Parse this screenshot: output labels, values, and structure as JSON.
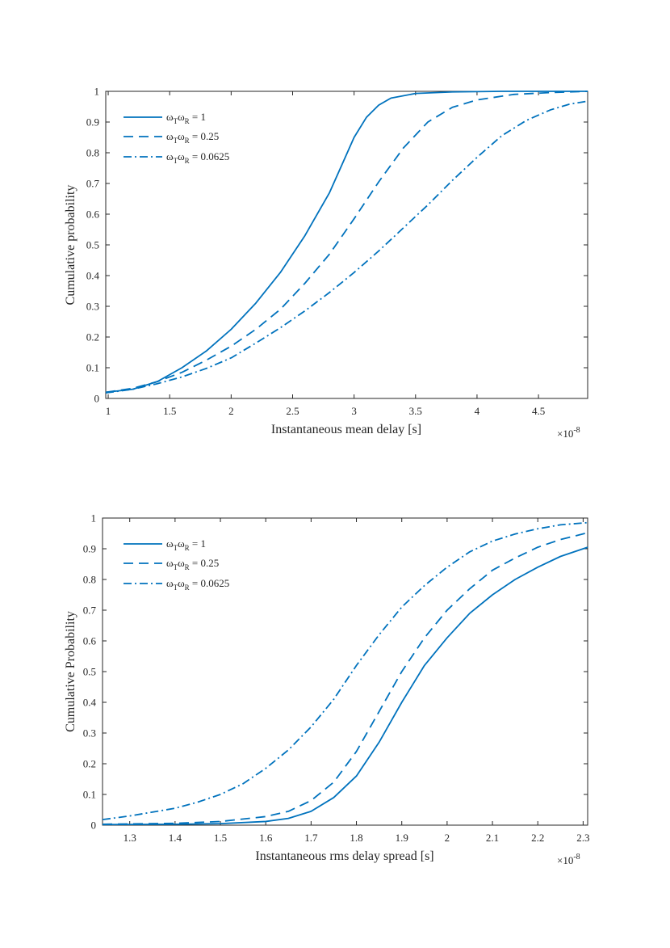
{
  "charts": [
    {
      "id": "top",
      "xlabel": "Instantaneous mean delay [s]",
      "ylabel": "Cumulative probability",
      "exponent_label": "×10",
      "exponent_power": "-8"
    },
    {
      "id": "bottom",
      "xlabel": "Instantaneous rms delay spread [s]",
      "ylabel": "Cumulative Probability",
      "exponent_label": "×10",
      "exponent_power": "-8"
    }
  ],
  "legend_entries": [
    {
      "main1": "ω",
      "sub1": "T",
      "main2": "ω",
      "sub2": "R",
      "tail": " = 1"
    },
    {
      "main1": "ω",
      "sub1": "T",
      "main2": "ω",
      "sub2": "R",
      "tail": " = 0.25"
    },
    {
      "main1": "ω",
      "sub1": "T",
      "main2": "ω",
      "sub2": "R",
      "tail": " = 0.0625"
    }
  ],
  "chart_data": [
    {
      "type": "line",
      "xlabel": "Instantaneous mean delay [s]",
      "ylabel": "Cumulative probability",
      "x_scale_note": "×10^-8",
      "xlim": [
        0.98,
        4.9
      ],
      "ylim": [
        0,
        1
      ],
      "xticks": [
        "1",
        "1.5",
        "2",
        "2.5",
        "3",
        "3.5",
        "4",
        "4.5"
      ],
      "xtick_values": [
        1,
        1.5,
        2,
        2.5,
        3,
        3.5,
        4,
        4.5
      ],
      "yticks": [
        "0",
        "0.1",
        "0.2",
        "0.3",
        "0.4",
        "0.5",
        "0.6",
        "0.7",
        "0.8",
        "0.9",
        "1"
      ],
      "ytick_values": [
        0,
        0.1,
        0.2,
        0.3,
        0.4,
        0.5,
        0.6,
        0.7,
        0.8,
        0.9,
        1
      ],
      "grid": false,
      "legend_position": "top-left",
      "color": "#0072BD",
      "series": [
        {
          "name": "ωTωR = 1",
          "dash": "solid",
          "points": [
            [
              0.98,
              0.02
            ],
            [
              1.2,
              0.03
            ],
            [
              1.4,
              0.055
            ],
            [
              1.6,
              0.1
            ],
            [
              1.8,
              0.155
            ],
            [
              2.0,
              0.225
            ],
            [
              2.2,
              0.31
            ],
            [
              2.4,
              0.41
            ],
            [
              2.6,
              0.53
            ],
            [
              2.8,
              0.67
            ],
            [
              2.9,
              0.76
            ],
            [
              3.0,
              0.85
            ],
            [
              3.1,
              0.915
            ],
            [
              3.2,
              0.955
            ],
            [
              3.3,
              0.978
            ],
            [
              3.5,
              0.993
            ],
            [
              3.8,
              0.998
            ],
            [
              4.2,
              1.0
            ],
            [
              4.9,
              1.0
            ]
          ]
        },
        {
          "name": "ωTωR = 0.25",
          "dash": "dashed",
          "points": [
            [
              0.98,
              0.02
            ],
            [
              1.2,
              0.033
            ],
            [
              1.4,
              0.055
            ],
            [
              1.6,
              0.085
            ],
            [
              1.8,
              0.125
            ],
            [
              2.0,
              0.17
            ],
            [
              2.2,
              0.225
            ],
            [
              2.4,
              0.29
            ],
            [
              2.6,
              0.375
            ],
            [
              2.8,
              0.47
            ],
            [
              3.0,
              0.585
            ],
            [
              3.2,
              0.705
            ],
            [
              3.4,
              0.815
            ],
            [
              3.6,
              0.9
            ],
            [
              3.8,
              0.948
            ],
            [
              4.0,
              0.972
            ],
            [
              4.3,
              0.99
            ],
            [
              4.6,
              0.996
            ],
            [
              4.9,
              1.0
            ]
          ]
        },
        {
          "name": "ωTωR = 0.0625",
          "dash": "dashdot",
          "points": [
            [
              0.98,
              0.018
            ],
            [
              1.2,
              0.03
            ],
            [
              1.4,
              0.048
            ],
            [
              1.6,
              0.07
            ],
            [
              1.8,
              0.098
            ],
            [
              2.0,
              0.132
            ],
            [
              2.2,
              0.18
            ],
            [
              2.4,
              0.23
            ],
            [
              2.6,
              0.285
            ],
            [
              2.8,
              0.345
            ],
            [
              3.0,
              0.41
            ],
            [
              3.2,
              0.48
            ],
            [
              3.4,
              0.555
            ],
            [
              3.6,
              0.63
            ],
            [
              3.8,
              0.71
            ],
            [
              4.0,
              0.785
            ],
            [
              4.2,
              0.855
            ],
            [
              4.4,
              0.905
            ],
            [
              4.6,
              0.94
            ],
            [
              4.75,
              0.958
            ],
            [
              4.9,
              0.968
            ]
          ]
        }
      ]
    },
    {
      "type": "line",
      "xlabel": "Instantaneous rms delay spread [s]",
      "ylabel": "Cumulative Probability",
      "x_scale_note": "×10^-8",
      "xlim": [
        1.24,
        2.31
      ],
      "ylim": [
        0,
        1
      ],
      "xticks": [
        "1.3",
        "1.4",
        "1.5",
        "1.6",
        "1.7",
        "1.8",
        "1.9",
        "2",
        "2.1",
        "2.2",
        "2.3"
      ],
      "xtick_values": [
        1.3,
        1.4,
        1.5,
        1.6,
        1.7,
        1.8,
        1.9,
        2.0,
        2.1,
        2.2,
        2.3
      ],
      "yticks": [
        "0",
        "0.1",
        "0.2",
        "0.3",
        "0.4",
        "0.5",
        "0.6",
        "0.7",
        "0.8",
        "0.9",
        "1"
      ],
      "ytick_values": [
        0,
        0.1,
        0.2,
        0.3,
        0.4,
        0.5,
        0.6,
        0.7,
        0.8,
        0.9,
        1
      ],
      "grid": false,
      "legend_position": "top-left",
      "color": "#0072BD",
      "series": [
        {
          "name": "ωTωR = 1",
          "dash": "solid",
          "points": [
            [
              1.24,
              0.002
            ],
            [
              1.4,
              0.003
            ],
            [
              1.5,
              0.005
            ],
            [
              1.6,
              0.012
            ],
            [
              1.65,
              0.022
            ],
            [
              1.7,
              0.045
            ],
            [
              1.75,
              0.09
            ],
            [
              1.8,
              0.16
            ],
            [
              1.85,
              0.27
            ],
            [
              1.9,
              0.4
            ],
            [
              1.95,
              0.52
            ],
            [
              2.0,
              0.61
            ],
            [
              2.05,
              0.69
            ],
            [
              2.1,
              0.75
            ],
            [
              2.15,
              0.8
            ],
            [
              2.2,
              0.84
            ],
            [
              2.25,
              0.875
            ],
            [
              2.31,
              0.905
            ]
          ]
        },
        {
          "name": "ωTωR = 0.25",
          "dash": "dashed",
          "points": [
            [
              1.24,
              0.003
            ],
            [
              1.4,
              0.006
            ],
            [
              1.5,
              0.012
            ],
            [
              1.6,
              0.028
            ],
            [
              1.65,
              0.045
            ],
            [
              1.7,
              0.08
            ],
            [
              1.75,
              0.14
            ],
            [
              1.8,
              0.24
            ],
            [
              1.85,
              0.37
            ],
            [
              1.9,
              0.5
            ],
            [
              1.95,
              0.61
            ],
            [
              2.0,
              0.7
            ],
            [
              2.05,
              0.77
            ],
            [
              2.1,
              0.83
            ],
            [
              2.15,
              0.87
            ],
            [
              2.2,
              0.905
            ],
            [
              2.25,
              0.93
            ],
            [
              2.31,
              0.952
            ]
          ]
        },
        {
          "name": "ωTωR = 0.0625",
          "dash": "dashdot",
          "points": [
            [
              1.24,
              0.018
            ],
            [
              1.3,
              0.03
            ],
            [
              1.4,
              0.055
            ],
            [
              1.45,
              0.075
            ],
            [
              1.5,
              0.1
            ],
            [
              1.55,
              0.135
            ],
            [
              1.6,
              0.185
            ],
            [
              1.65,
              0.245
            ],
            [
              1.7,
              0.32
            ],
            [
              1.75,
              0.41
            ],
            [
              1.8,
              0.52
            ],
            [
              1.85,
              0.62
            ],
            [
              1.9,
              0.71
            ],
            [
              1.95,
              0.78
            ],
            [
              2.0,
              0.84
            ],
            [
              2.05,
              0.89
            ],
            [
              2.1,
              0.925
            ],
            [
              2.15,
              0.948
            ],
            [
              2.2,
              0.965
            ],
            [
              2.25,
              0.978
            ],
            [
              2.31,
              0.985
            ]
          ]
        }
      ]
    }
  ]
}
